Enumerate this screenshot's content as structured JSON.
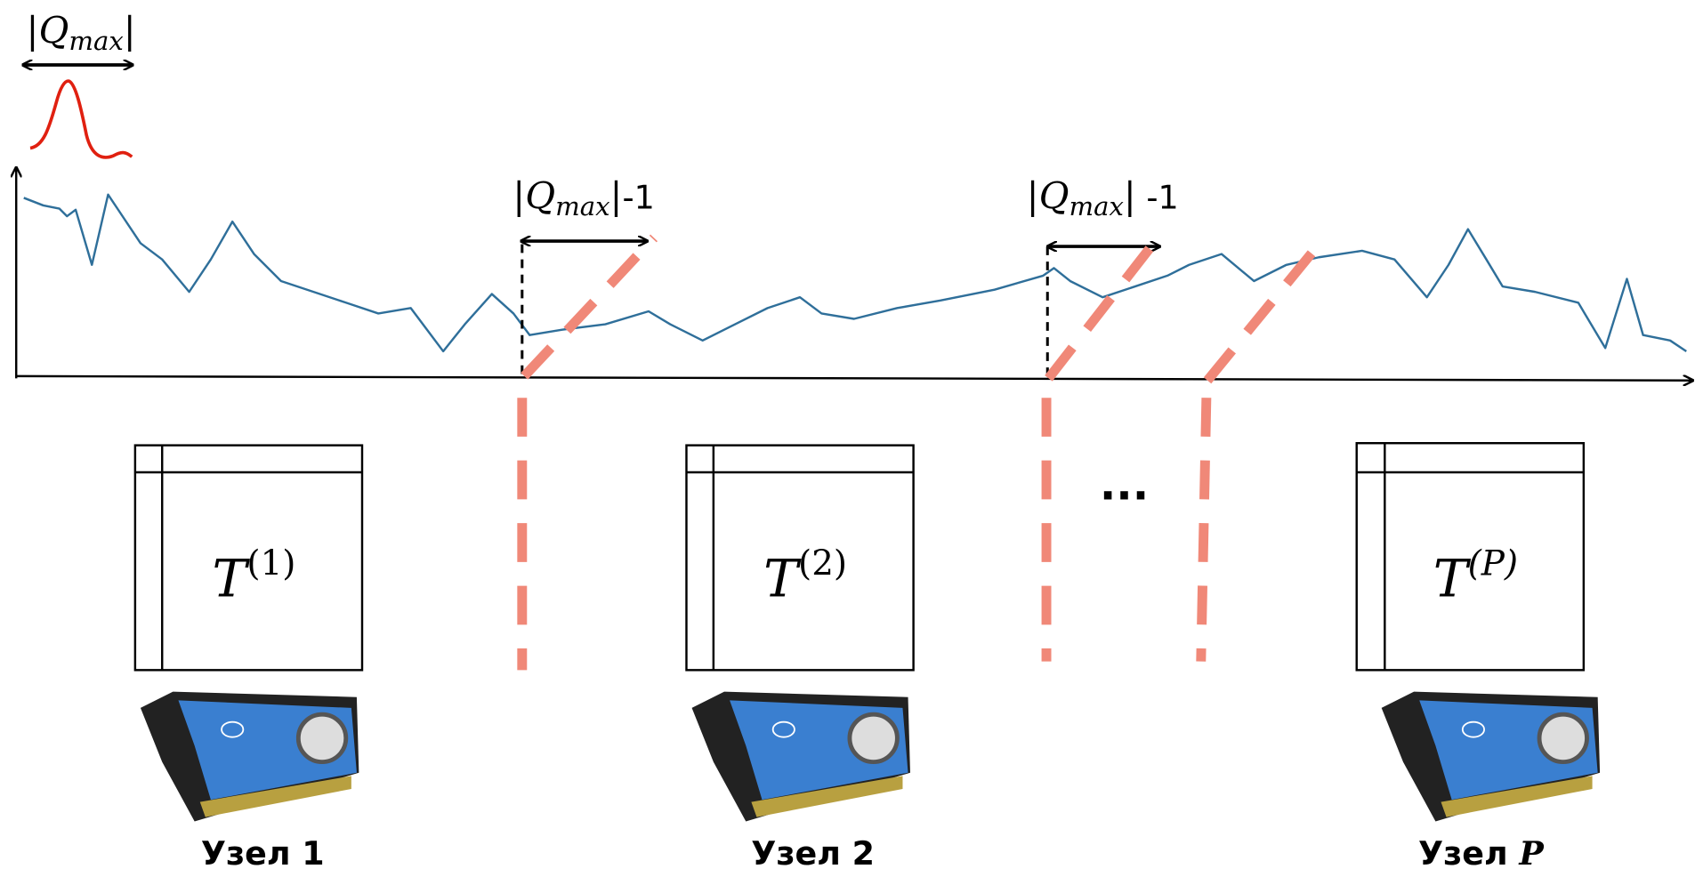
{
  "series_label": {
    "open": "|",
    "symbol": "Q",
    "subscript": "max",
    "close": "|"
  },
  "overlap_labels": [
    {
      "open": "|",
      "symbol": "Q",
      "subscript": "max",
      "close": "|",
      "suffix": "-1"
    },
    {
      "open": "|",
      "symbol": "Q",
      "subscript": "max",
      "close": "|",
      "suffix": " -1"
    }
  ],
  "matrices": [
    {
      "symbol": "T",
      "superscript": "(1)"
    },
    {
      "symbol": "T",
      "superscript": "(2)"
    },
    {
      "symbol": "T",
      "superscript": "(P)"
    }
  ],
  "ellipsis": "...",
  "nodes": [
    {
      "label": "Узел 1"
    },
    {
      "label": "Узел 2"
    },
    {
      "label": "Узел ",
      "index": "P"
    }
  ]
}
